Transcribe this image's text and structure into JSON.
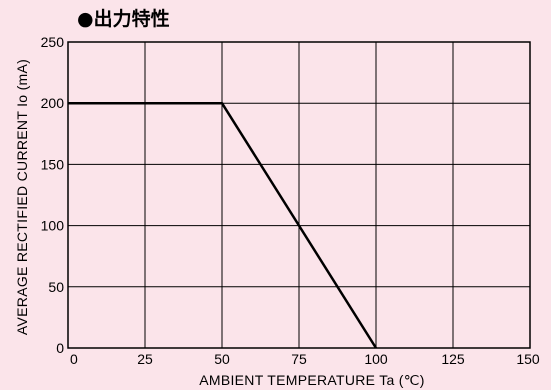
{
  "title": "●出力特性",
  "colors": {
    "background": "#fbe4ea",
    "plot_background": "#fbe4ea",
    "grid": "#000000",
    "line": "#000000"
  },
  "chart_data": {
    "type": "line",
    "title": "●出力特性",
    "xlabel": "AMBIENT  TEMPERATURE  Ta (℃)",
    "ylabel": "AVERAGE  RECTIFIED  CURRENT  Io (mA)",
    "xlim": [
      0,
      150
    ],
    "ylim": [
      0,
      250
    ],
    "x_ticks": [
      0,
      25,
      50,
      75,
      100,
      125,
      150
    ],
    "y_ticks": [
      0,
      50,
      100,
      150,
      200,
      250
    ],
    "grid": true,
    "legend": "none",
    "series": [
      {
        "x": [
          0,
          50,
          100
        ],
        "y": [
          200,
          200,
          0
        ]
      }
    ]
  }
}
